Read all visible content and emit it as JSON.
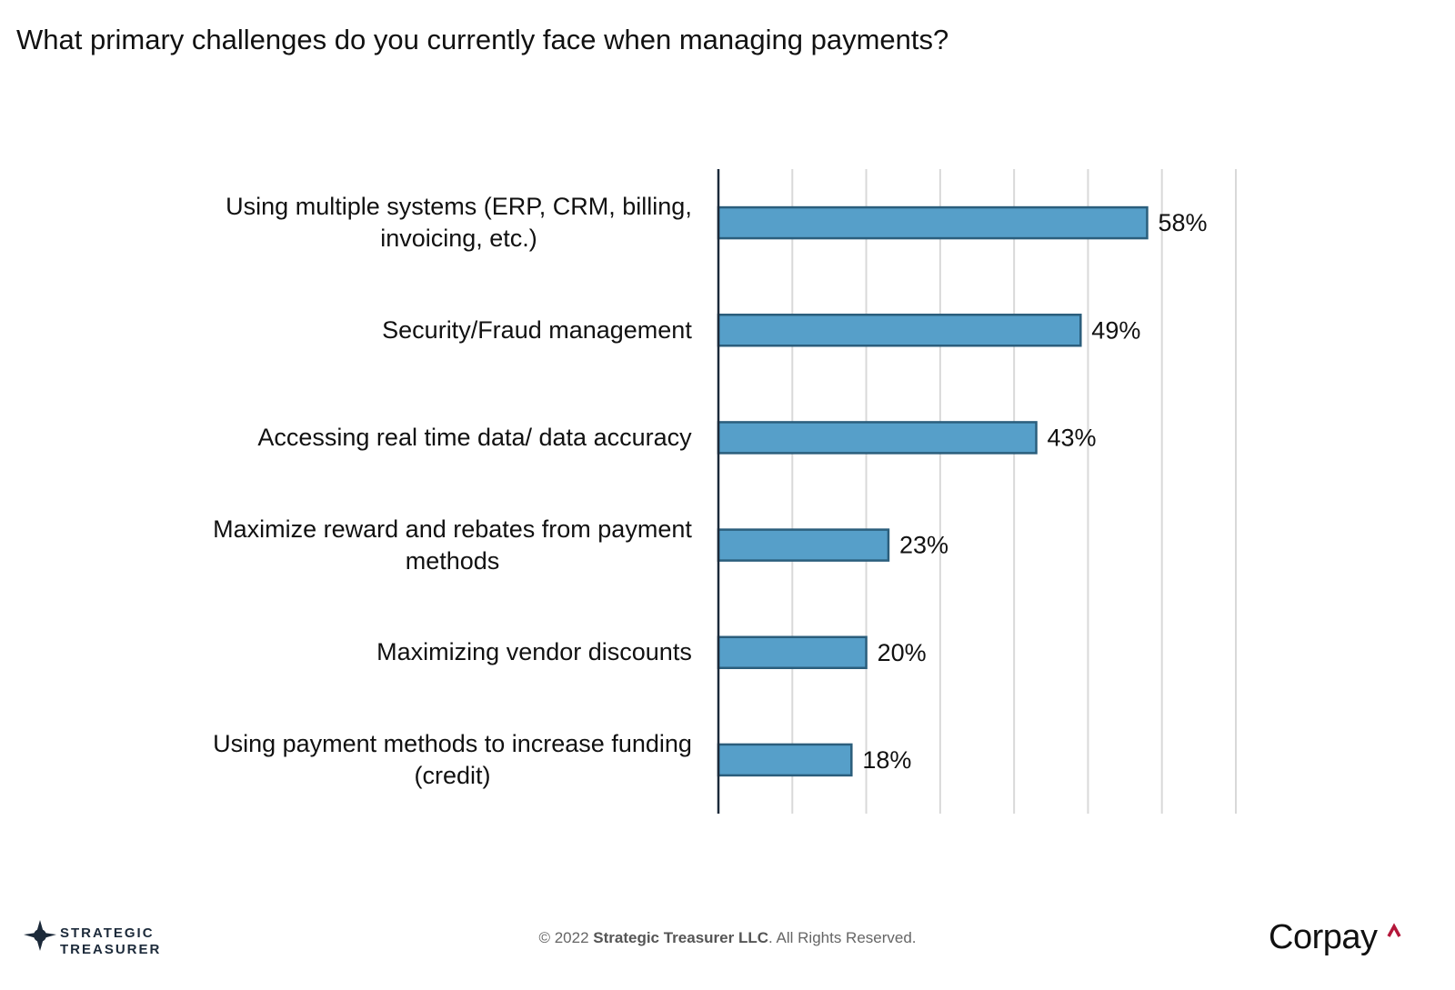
{
  "chart_data": {
    "type": "bar",
    "orientation": "horizontal",
    "title": "What primary challenges do you currently face when managing payments?",
    "categories": [
      "Using multiple systems (ERP, CRM, billing,\ninvoicing, etc.)",
      "Security/Fraud management",
      "Accessing real time data/ data accuracy",
      "Maximize reward and rebates from payment\nmethods",
      "Maximizing vendor discounts",
      "Using payment methods to increase funding\n(credit)"
    ],
    "values": [
      58,
      49,
      43,
      23,
      20,
      18
    ],
    "value_labels": [
      "58%",
      "49%",
      "43%",
      "23%",
      "20%",
      "18%"
    ],
    "color": "#569fc9",
    "edge_color": "#2b5e7c",
    "xlim": [
      0,
      70
    ],
    "xticks": [
      0,
      10,
      20,
      30,
      40,
      50,
      60,
      70
    ],
    "grid": true
  },
  "footer": {
    "logo_line1": "STRATEGIC",
    "logo_line2": "TREASURER",
    "copyright_prefix": "© 2022 ",
    "copyright_owner": "Strategic Treasurer LLC",
    "copyright_suffix": ". All Rights Reserved.",
    "brand": "Corpay"
  }
}
